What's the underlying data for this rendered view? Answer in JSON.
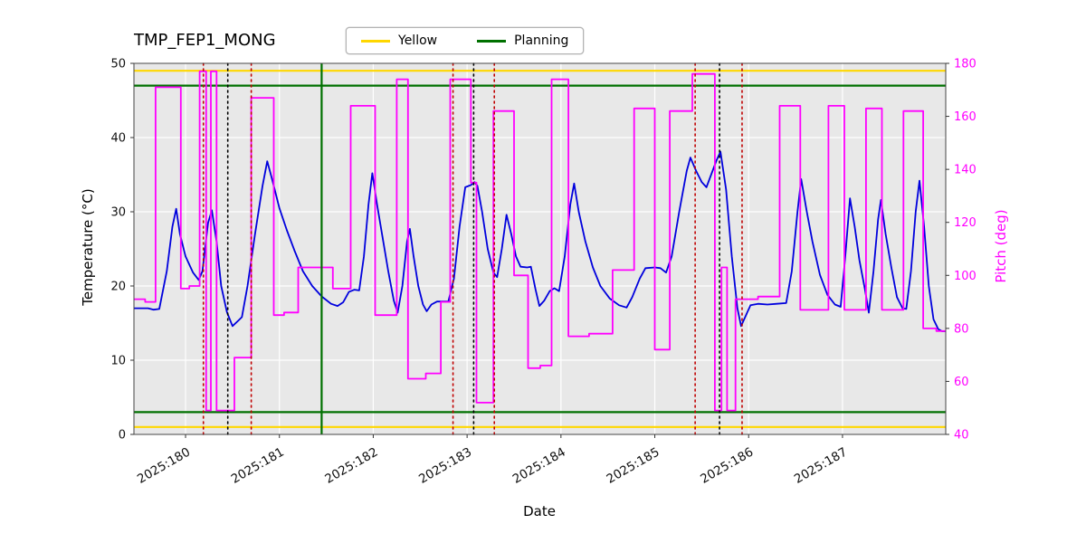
{
  "chart_data": {
    "type": "line",
    "title": "TMP_FEP1_MONG",
    "xlabel": "Date",
    "ylabel_left": "Temperature (°C)",
    "ylabel_right": "Pitch (deg)",
    "xlim": [
      179.45,
      188.1
    ],
    "ylim_left": [
      0,
      50
    ],
    "ylim_right": [
      40,
      180
    ],
    "grid": true,
    "legend_position": "top",
    "legend": [
      {
        "label": "Yellow",
        "color": "#ffd700"
      },
      {
        "label": "Planning",
        "color": "#007000"
      }
    ],
    "x_ticks": [
      {
        "value": 180,
        "label": "2025:180"
      },
      {
        "value": 181,
        "label": "2025:181"
      },
      {
        "value": 182,
        "label": "2025:182"
      },
      {
        "value": 183,
        "label": "2025:183"
      },
      {
        "value": 184,
        "label": "2025:184"
      },
      {
        "value": 185,
        "label": "2025:185"
      },
      {
        "value": 186,
        "label": "2025:186"
      },
      {
        "value": 187,
        "label": "2025:187"
      }
    ],
    "y_ticks_left": [
      0,
      10,
      20,
      30,
      40,
      50
    ],
    "y_ticks_right": [
      40,
      60,
      80,
      100,
      120,
      140,
      160,
      180
    ],
    "colors": {
      "temperature_line": "#0000dd",
      "pitch_line": "#ff00ff",
      "yellow_limit": "#ffd700",
      "planning_limit": "#007000",
      "red_marker": "#c00000",
      "black_marker": "#000000",
      "plot_background": "#e8e8e8",
      "grid": "#ffffff"
    },
    "hlines": [
      {
        "name": "yellow-high-limit",
        "y": 49,
        "color": "#ffd700",
        "style": "solid"
      },
      {
        "name": "yellow-low-limit",
        "y": 1,
        "color": "#ffd700",
        "style": "solid"
      },
      {
        "name": "planning-high-limit",
        "y": 47,
        "color": "#007000",
        "style": "solid"
      },
      {
        "name": "planning-low-limit",
        "y": 3,
        "color": "#007000",
        "style": "solid"
      }
    ],
    "vlines": [
      {
        "x": 181.45,
        "color": "#007000",
        "style": "solid"
      },
      {
        "x": 180.45,
        "color": "#000000",
        "style": "dotted"
      },
      {
        "x": 183.07,
        "color": "#000000",
        "style": "dotted"
      },
      {
        "x": 185.69,
        "color": "#000000",
        "style": "dotted"
      },
      {
        "x": 180.19,
        "color": "#c00000",
        "style": "dotted"
      },
      {
        "x": 180.7,
        "color": "#c00000",
        "style": "dotted"
      },
      {
        "x": 182.85,
        "color": "#c00000",
        "style": "dotted"
      },
      {
        "x": 183.29,
        "color": "#c00000",
        "style": "dotted"
      },
      {
        "x": 185.43,
        "color": "#c00000",
        "style": "dotted"
      },
      {
        "x": 185.93,
        "color": "#c00000",
        "style": "dotted"
      }
    ],
    "series": [
      {
        "name": "Temperature",
        "axis": "left",
        "color": "#0000dd",
        "points": [
          [
            179.45,
            17.0
          ],
          [
            179.6,
            17.0
          ],
          [
            179.66,
            16.8
          ],
          [
            179.72,
            16.9
          ],
          [
            179.8,
            22.0
          ],
          [
            179.86,
            28.0
          ],
          [
            179.9,
            30.4
          ],
          [
            179.94,
            27.0
          ],
          [
            180.0,
            24.0
          ],
          [
            180.08,
            21.8
          ],
          [
            180.14,
            20.8
          ],
          [
            180.18,
            22.0
          ],
          [
            180.24,
            28.5
          ],
          [
            180.28,
            30.2
          ],
          [
            180.33,
            26.0
          ],
          [
            180.38,
            20.0
          ],
          [
            180.44,
            16.5
          ],
          [
            180.5,
            14.6
          ],
          [
            180.56,
            15.3
          ],
          [
            180.6,
            15.8
          ],
          [
            180.66,
            20.0
          ],
          [
            180.74,
            27.0
          ],
          [
            180.82,
            33.5
          ],
          [
            180.87,
            36.8
          ],
          [
            180.92,
            34.5
          ],
          [
            181.0,
            30.5
          ],
          [
            181.08,
            27.5
          ],
          [
            181.16,
            24.8
          ],
          [
            181.25,
            22.0
          ],
          [
            181.35,
            20.0
          ],
          [
            181.45,
            18.6
          ],
          [
            181.55,
            17.6
          ],
          [
            181.62,
            17.3
          ],
          [
            181.68,
            17.8
          ],
          [
            181.74,
            19.2
          ],
          [
            181.8,
            19.5
          ],
          [
            181.85,
            19.4
          ],
          [
            181.9,
            24.0
          ],
          [
            181.95,
            31.0
          ],
          [
            181.99,
            35.2
          ],
          [
            182.04,
            31.0
          ],
          [
            182.1,
            26.5
          ],
          [
            182.16,
            22.0
          ],
          [
            182.22,
            18.0
          ],
          [
            182.26,
            16.4
          ],
          [
            182.31,
            20.0
          ],
          [
            182.36,
            26.0
          ],
          [
            182.39,
            27.7
          ],
          [
            182.43,
            24.0
          ],
          [
            182.48,
            20.0
          ],
          [
            182.53,
            17.5
          ],
          [
            182.57,
            16.6
          ],
          [
            182.62,
            17.5
          ],
          [
            182.68,
            17.9
          ],
          [
            182.8,
            17.9
          ],
          [
            182.86,
            21.0
          ],
          [
            182.92,
            28.0
          ],
          [
            182.98,
            33.3
          ],
          [
            183.04,
            33.6
          ],
          [
            183.08,
            34.0
          ],
          [
            183.11,
            33.5
          ],
          [
            183.16,
            30.0
          ],
          [
            183.22,
            25.0
          ],
          [
            183.28,
            21.8
          ],
          [
            183.32,
            21.2
          ],
          [
            183.37,
            25.0
          ],
          [
            183.42,
            29.6
          ],
          [
            183.47,
            27.0
          ],
          [
            183.52,
            24.0
          ],
          [
            183.57,
            22.6
          ],
          [
            183.64,
            22.5
          ],
          [
            183.68,
            22.6
          ],
          [
            183.73,
            19.5
          ],
          [
            183.77,
            17.3
          ],
          [
            183.82,
            18.0
          ],
          [
            183.88,
            19.3
          ],
          [
            183.93,
            19.7
          ],
          [
            183.98,
            19.3
          ],
          [
            184.04,
            24.0
          ],
          [
            184.1,
            31.0
          ],
          [
            184.14,
            33.8
          ],
          [
            184.19,
            30.0
          ],
          [
            184.26,
            26.0
          ],
          [
            184.34,
            22.5
          ],
          [
            184.42,
            20.0
          ],
          [
            184.52,
            18.3
          ],
          [
            184.62,
            17.4
          ],
          [
            184.7,
            17.1
          ],
          [
            184.76,
            18.5
          ],
          [
            184.84,
            21.0
          ],
          [
            184.9,
            22.4
          ],
          [
            185.0,
            22.5
          ],
          [
            185.06,
            22.4
          ],
          [
            185.12,
            21.8
          ],
          [
            185.18,
            24.0
          ],
          [
            185.26,
            30.0
          ],
          [
            185.34,
            35.5
          ],
          [
            185.38,
            37.3
          ],
          [
            185.44,
            35.5
          ],
          [
            185.5,
            34.0
          ],
          [
            185.55,
            33.3
          ],
          [
            185.6,
            35.0
          ],
          [
            185.66,
            37.0
          ],
          [
            185.7,
            38.1
          ],
          [
            185.76,
            33.0
          ],
          [
            185.82,
            24.0
          ],
          [
            185.88,
            17.0
          ],
          [
            185.92,
            14.6
          ],
          [
            185.97,
            16.0
          ],
          [
            186.02,
            17.4
          ],
          [
            186.1,
            17.6
          ],
          [
            186.2,
            17.5
          ],
          [
            186.3,
            17.6
          ],
          [
            186.4,
            17.7
          ],
          [
            186.46,
            22.0
          ],
          [
            186.52,
            30.0
          ],
          [
            186.56,
            34.4
          ],
          [
            186.62,
            30.0
          ],
          [
            186.68,
            26.0
          ],
          [
            186.76,
            21.5
          ],
          [
            186.84,
            18.8
          ],
          [
            186.92,
            17.5
          ],
          [
            186.98,
            17.2
          ],
          [
            187.03,
            24.0
          ],
          [
            187.08,
            31.8
          ],
          [
            187.13,
            28.0
          ],
          [
            187.18,
            23.5
          ],
          [
            187.24,
            19.5
          ],
          [
            187.28,
            16.4
          ],
          [
            187.33,
            22.0
          ],
          [
            187.38,
            29.0
          ],
          [
            187.41,
            31.6
          ],
          [
            187.46,
            27.0
          ],
          [
            187.52,
            22.5
          ],
          [
            187.58,
            18.5
          ],
          [
            187.64,
            17.0
          ],
          [
            187.68,
            16.9
          ],
          [
            187.73,
            22.0
          ],
          [
            187.78,
            30.0
          ],
          [
            187.82,
            34.2
          ],
          [
            187.87,
            28.0
          ],
          [
            187.92,
            20.0
          ],
          [
            187.97,
            15.5
          ],
          [
            188.02,
            14.2
          ],
          [
            188.06,
            13.9
          ],
          [
            188.1,
            13.9
          ]
        ]
      },
      {
        "name": "Pitch",
        "axis": "right",
        "color": "#ff00ff",
        "points": [
          [
            179.45,
            91
          ],
          [
            179.57,
            91
          ],
          [
            179.57,
            90
          ],
          [
            179.68,
            90
          ],
          [
            179.68,
            171
          ],
          [
            179.95,
            171
          ],
          [
            179.95,
            95
          ],
          [
            180.04,
            95
          ],
          [
            180.04,
            96
          ],
          [
            180.15,
            96
          ],
          [
            180.15,
            177
          ],
          [
            180.22,
            177
          ],
          [
            180.22,
            49
          ],
          [
            180.27,
            49
          ],
          [
            180.27,
            177
          ],
          [
            180.33,
            177
          ],
          [
            180.33,
            49
          ],
          [
            180.52,
            49
          ],
          [
            180.52,
            69
          ],
          [
            180.7,
            69
          ],
          [
            180.7,
            167
          ],
          [
            180.94,
            167
          ],
          [
            180.94,
            85
          ],
          [
            181.05,
            85
          ],
          [
            181.05,
            86
          ],
          [
            181.2,
            86
          ],
          [
            181.2,
            103
          ],
          [
            181.57,
            103
          ],
          [
            181.57,
            95
          ],
          [
            181.76,
            95
          ],
          [
            181.76,
            164
          ],
          [
            182.02,
            164
          ],
          [
            182.02,
            85
          ],
          [
            182.25,
            85
          ],
          [
            182.25,
            174
          ],
          [
            182.37,
            174
          ],
          [
            182.37,
            61
          ],
          [
            182.56,
            61
          ],
          [
            182.56,
            63
          ],
          [
            182.72,
            63
          ],
          [
            182.72,
            90
          ],
          [
            182.82,
            90
          ],
          [
            182.82,
            174
          ],
          [
            183.04,
            174
          ],
          [
            183.04,
            135
          ],
          [
            183.1,
            135
          ],
          [
            183.1,
            52
          ],
          [
            183.28,
            52
          ],
          [
            183.28,
            162
          ],
          [
            183.5,
            162
          ],
          [
            183.5,
            100
          ],
          [
            183.65,
            100
          ],
          [
            183.65,
            65
          ],
          [
            183.78,
            65
          ],
          [
            183.78,
            66
          ],
          [
            183.9,
            66
          ],
          [
            183.9,
            174
          ],
          [
            184.08,
            174
          ],
          [
            184.08,
            77
          ],
          [
            184.3,
            77
          ],
          [
            184.3,
            78
          ],
          [
            184.55,
            78
          ],
          [
            184.55,
            102
          ],
          [
            184.78,
            102
          ],
          [
            184.78,
            163
          ],
          [
            185.0,
            163
          ],
          [
            185.0,
            72
          ],
          [
            185.16,
            72
          ],
          [
            185.16,
            162
          ],
          [
            185.4,
            162
          ],
          [
            185.4,
            176
          ],
          [
            185.64,
            176
          ],
          [
            185.64,
            49
          ],
          [
            185.71,
            49
          ],
          [
            185.71,
            103
          ],
          [
            185.77,
            103
          ],
          [
            185.77,
            49
          ],
          [
            185.86,
            49
          ],
          [
            185.86,
            91
          ],
          [
            186.1,
            91
          ],
          [
            186.1,
            92
          ],
          [
            186.33,
            92
          ],
          [
            186.33,
            164
          ],
          [
            186.55,
            164
          ],
          [
            186.55,
            87
          ],
          [
            186.85,
            87
          ],
          [
            186.85,
            164
          ],
          [
            187.02,
            164
          ],
          [
            187.02,
            87
          ],
          [
            187.25,
            87
          ],
          [
            187.25,
            163
          ],
          [
            187.42,
            163
          ],
          [
            187.42,
            87
          ],
          [
            187.65,
            87
          ],
          [
            187.65,
            162
          ],
          [
            187.86,
            162
          ],
          [
            187.86,
            80
          ],
          [
            188.0,
            80
          ],
          [
            188.0,
            79
          ],
          [
            188.1,
            79
          ]
        ]
      }
    ]
  }
}
